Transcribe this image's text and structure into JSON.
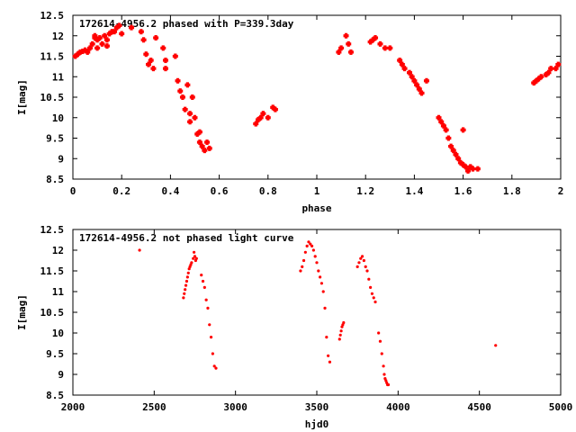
{
  "chart_data": [
    {
      "type": "scatter",
      "title": "172614-4956.2 phased with P=339.3day",
      "xlabel": "phase",
      "ylabel": "I[mag]",
      "xlim": [
        0,
        2
      ],
      "ylim": [
        12.5,
        8.5
      ],
      "y_inverted": true,
      "xticks": [
        "0",
        "0.2",
        "0.4",
        "0.6",
        "0.8",
        "1",
        "1.2",
        "1.4",
        "1.6",
        "1.8",
        "2"
      ],
      "yticks": [
        "8.5",
        "9",
        "9.5",
        "10",
        "10.5",
        "11",
        "11.5",
        "12",
        "12.5"
      ],
      "marker_color": "#ff0000",
      "grid": false,
      "x": [
        0.01,
        0.02,
        0.03,
        0.04,
        0.05,
        0.06,
        0.07,
        0.08,
        0.09,
        0.09,
        0.1,
        0.1,
        0.11,
        0.12,
        0.13,
        0.14,
        0.14,
        0.15,
        0.16,
        0.17,
        0.18,
        0.19,
        0.2,
        0.24,
        0.28,
        0.29,
        0.3,
        0.31,
        0.32,
        0.33,
        0.34,
        0.37,
        0.38,
        0.38,
        0.42,
        0.43,
        0.44,
        0.45,
        0.46,
        0.47,
        0.48,
        0.48,
        0.49,
        0.5,
        0.51,
        0.52,
        0.52,
        0.53,
        0.54,
        0.55,
        0.56,
        0.75,
        0.76,
        0.77,
        0.78,
        0.8,
        0.82,
        0.83,
        1.09,
        1.1,
        1.12,
        1.13,
        1.14,
        1.22,
        1.23,
        1.24,
        1.26,
        1.28,
        1.3,
        1.34,
        1.35,
        1.36,
        1.38,
        1.39,
        1.4,
        1.41,
        1.42,
        1.43,
        1.45,
        1.5,
        1.51,
        1.52,
        1.53,
        1.54,
        1.55,
        1.56,
        1.57,
        1.58,
        1.59,
        1.6,
        1.61,
        1.62,
        1.63,
        1.64,
        1.66,
        1.6,
        1.89,
        1.9,
        1.91,
        1.92,
        1.94,
        1.95,
        1.96,
        1.98,
        1.99
      ],
      "y": [
        11.5,
        11.55,
        11.6,
        11.62,
        11.65,
        11.6,
        11.7,
        11.8,
        11.95,
        12.0,
        11.9,
        11.7,
        11.95,
        11.8,
        12.0,
        11.9,
        11.75,
        12.05,
        12.1,
        12.1,
        12.2,
        12.25,
        12.05,
        12.2,
        12.1,
        11.9,
        11.55,
        11.3,
        11.4,
        11.2,
        11.95,
        11.7,
        11.4,
        11.2,
        11.5,
        10.9,
        10.65,
        10.5,
        10.2,
        10.8,
        10.1,
        9.9,
        10.5,
        10.0,
        9.6,
        9.4,
        9.65,
        9.3,
        9.2,
        9.4,
        9.25,
        9.85,
        9.95,
        10.0,
        10.1,
        10.0,
        10.25,
        10.2,
        11.6,
        11.7,
        12.0,
        11.8,
        11.6,
        11.85,
        11.9,
        11.95,
        11.8,
        11.7,
        11.7,
        11.4,
        11.3,
        11.2,
        11.1,
        11.0,
        10.9,
        10.8,
        10.7,
        10.6,
        10.9,
        10.0,
        9.9,
        9.8,
        9.7,
        9.5,
        9.3,
        9.2,
        9.1,
        9.0,
        8.9,
        8.85,
        8.8,
        8.7,
        8.8,
        8.75,
        8.75,
        9.7,
        10.85,
        10.9,
        10.95,
        11.0,
        11.05,
        11.1,
        11.2,
        11.2,
        11.3
      ]
    },
    {
      "type": "scatter",
      "title": "172614-4956.2 not phased light curve",
      "xlabel": "hjd0",
      "ylabel": "I[mag]",
      "xlim": [
        2000,
        5000
      ],
      "ylim": [
        12.5,
        8.5
      ],
      "y_inverted": true,
      "xticks": [
        "2000",
        "2500",
        "3000",
        "3500",
        "4000",
        "4500",
        "5000"
      ],
      "yticks": [
        "8.5",
        "9",
        "9.5",
        "10",
        "10.5",
        "11",
        "11.5",
        "12",
        "12.5"
      ],
      "marker_color": "#ff0000",
      "grid": false,
      "x": [
        2410,
        2680,
        2685,
        2690,
        2695,
        2700,
        2705,
        2710,
        2715,
        2720,
        2725,
        2730,
        2740,
        2745,
        2750,
        2755,
        2760,
        2790,
        2800,
        2810,
        2820,
        2830,
        2840,
        2850,
        2860,
        2870,
        2880,
        3400,
        3410,
        3420,
        3430,
        3440,
        3450,
        3460,
        3470,
        3480,
        3490,
        3500,
        3510,
        3520,
        3530,
        3540,
        3550,
        3560,
        3570,
        3580,
        3640,
        3645,
        3650,
        3655,
        3660,
        3665,
        3750,
        3760,
        3770,
        3780,
        3790,
        3800,
        3810,
        3820,
        3830,
        3840,
        3850,
        3860,
        3880,
        3890,
        3900,
        3910,
        3915,
        3920,
        3925,
        3930,
        3935,
        3940,
        4600
      ],
      "y": [
        12.0,
        10.85,
        10.95,
        11.05,
        11.15,
        11.25,
        11.35,
        11.45,
        11.55,
        11.6,
        11.65,
        11.7,
        11.8,
        11.95,
        11.85,
        11.75,
        11.8,
        11.4,
        11.25,
        11.1,
        10.8,
        10.6,
        10.2,
        9.9,
        9.5,
        9.2,
        9.15,
        11.5,
        11.6,
        11.75,
        11.95,
        12.1,
        12.2,
        12.15,
        12.1,
        12.0,
        11.85,
        11.7,
        11.5,
        11.35,
        11.2,
        11.0,
        10.6,
        9.9,
        9.45,
        9.3,
        9.85,
        9.95,
        10.05,
        10.15,
        10.2,
        10.25,
        11.6,
        11.7,
        11.8,
        11.85,
        11.75,
        11.6,
        11.5,
        11.3,
        11.1,
        10.95,
        10.85,
        10.75,
        10.0,
        9.8,
        9.5,
        9.2,
        9.0,
        8.9,
        8.85,
        8.8,
        8.75,
        8.75,
        9.7
      ]
    }
  ]
}
